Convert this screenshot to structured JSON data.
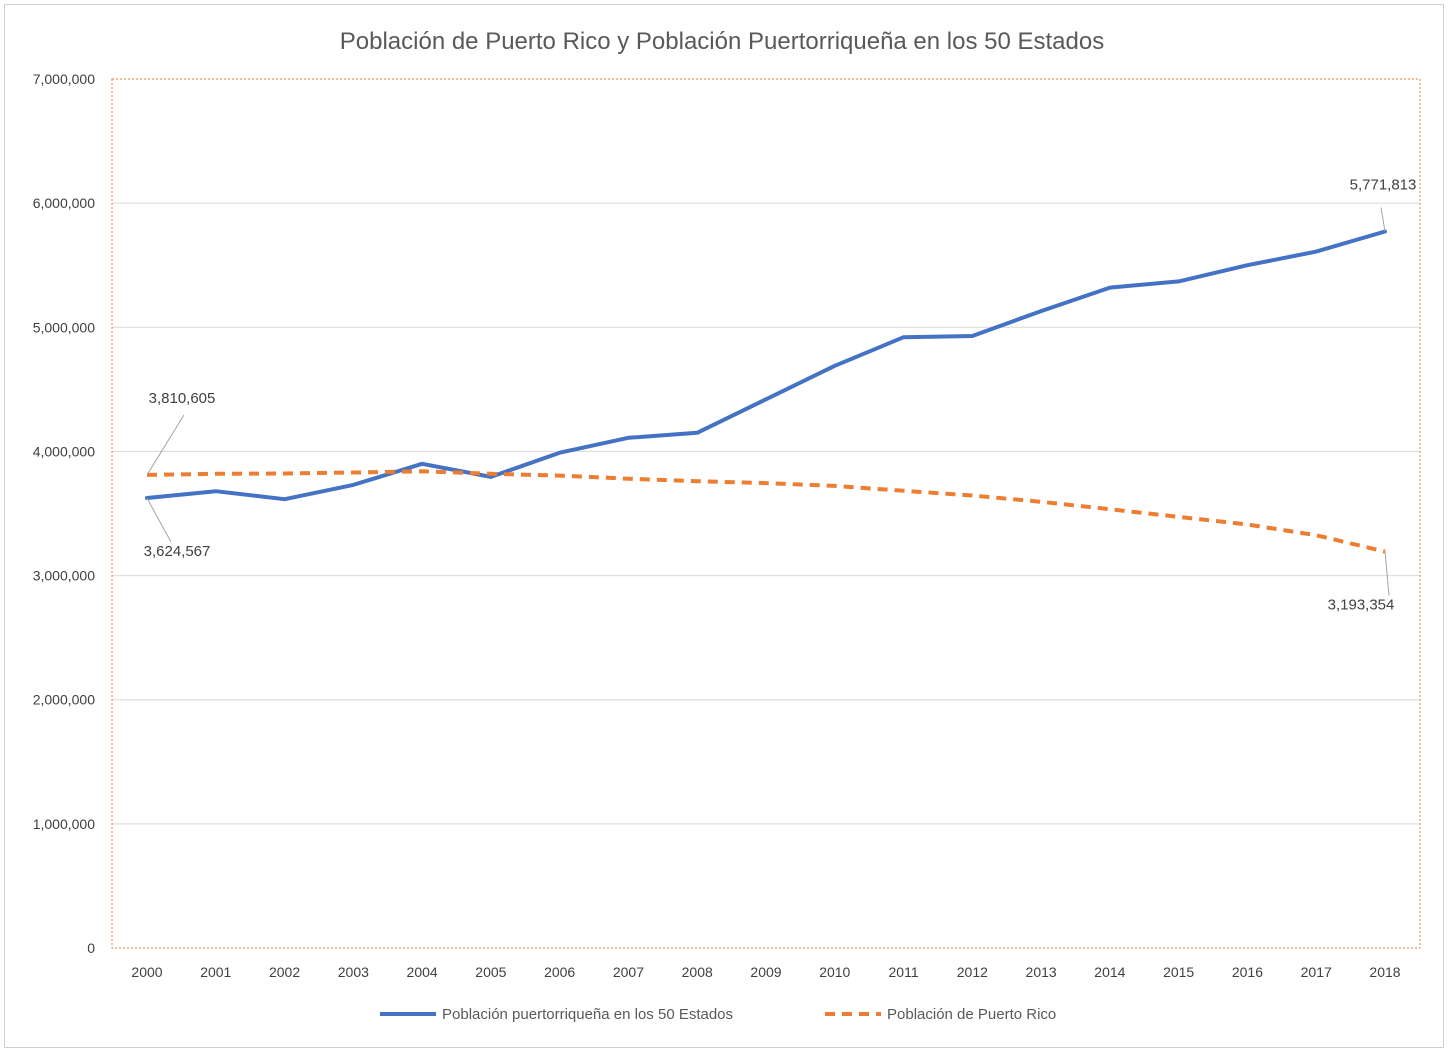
{
  "chart_data": {
    "type": "line",
    "title": "Población de Puerto Rico y Población Puertorriqueña en los 50 Estados",
    "xlabel": "",
    "ylabel": "",
    "ylim": [
      0,
      7000000
    ],
    "yticks": [
      0,
      1000000,
      2000000,
      3000000,
      4000000,
      5000000,
      6000000,
      7000000
    ],
    "ytick_labels": [
      "0",
      "1,000,000",
      "2,000,000",
      "3,000,000",
      "4,000,000",
      "5,000,000",
      "6,000,000",
      "7,000,000"
    ],
    "grid": true,
    "legend_position": "bottom",
    "categories": [
      "2000",
      "2001",
      "2002",
      "2003",
      "2004",
      "2005",
      "2006",
      "2007",
      "2008",
      "2009",
      "2010",
      "2011",
      "2012",
      "2013",
      "2014",
      "2015",
      "2016",
      "2017",
      "2018"
    ],
    "series": [
      {
        "name": "Población puertorriqueña en los 50 Estados",
        "color": "#4472C4",
        "dash": "solid",
        "values": [
          3624567,
          3680000,
          3615000,
          3730000,
          3900000,
          3795000,
          3990000,
          4110000,
          4150000,
          4420000,
          4690000,
          4920000,
          4930000,
          5130000,
          5320000,
          5370000,
          5500000,
          5610000,
          5771813
        ]
      },
      {
        "name": "Población de Puerto Rico",
        "color": "#ED7D31",
        "dash": "dashed",
        "values": [
          3810605,
          3820000,
          3822000,
          3830000,
          3840000,
          3820000,
          3805000,
          3780000,
          3760000,
          3745000,
          3722000,
          3683000,
          3645000,
          3594000,
          3535000,
          3473000,
          3411000,
          3325000,
          3193354
        ]
      }
    ],
    "annotations": [
      {
        "series": 1,
        "index": 0,
        "text": "3,810,605"
      },
      {
        "series": 0,
        "index": 0,
        "text": "3,624,567"
      },
      {
        "series": 0,
        "index": 18,
        "text": "5,771,813"
      },
      {
        "series": 1,
        "index": 18,
        "text": "3,193,354"
      }
    ]
  }
}
